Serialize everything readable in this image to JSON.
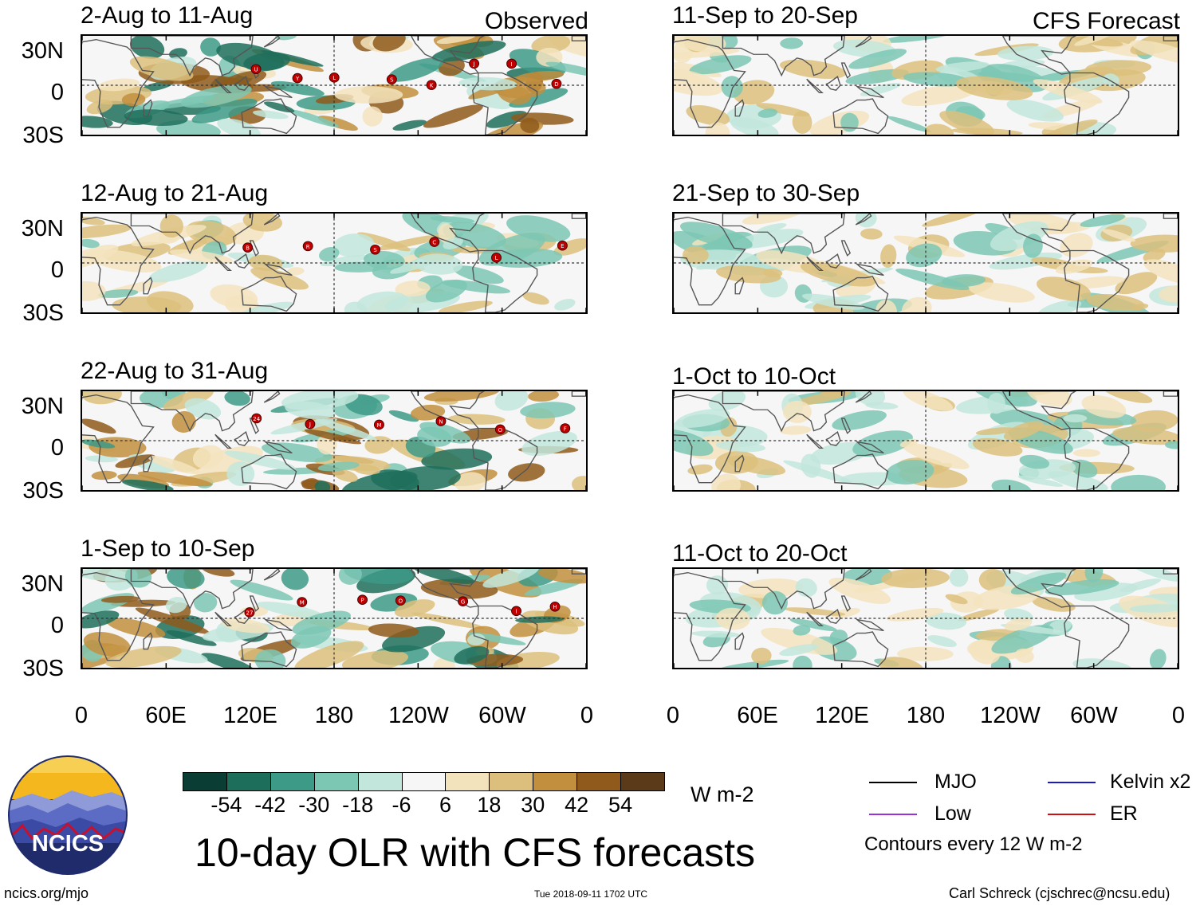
{
  "titles": {
    "left": "Observed",
    "right": "CFS Forecast"
  },
  "panels": {
    "observed": [
      {
        "period": "2-Aug to 11-Aug",
        "storms": [
          "U",
          "Y",
          "L",
          "S",
          "K",
          "J",
          "I",
          "D"
        ]
      },
      {
        "period": "12-Aug to 21-Aug",
        "storms": [
          "B",
          "R",
          "S",
          "C",
          "L",
          "E"
        ]
      },
      {
        "period": "22-Aug to 31-Aug",
        "storms": [
          "24",
          "J",
          "M",
          "N",
          "O",
          "F"
        ]
      },
      {
        "period": "1-Sep to 10-Sep",
        "storms": [
          "27",
          "M",
          "P",
          "O",
          "G",
          "I",
          "H"
        ]
      }
    ],
    "forecast": [
      {
        "period": "11-Sep to 20-Sep"
      },
      {
        "period": "21-Sep to 30-Sep"
      },
      {
        "period": "1-Oct to 10-Oct"
      },
      {
        "period": "11-Oct to 20-Oct"
      }
    ]
  },
  "lat_labels": [
    "30N",
    "0",
    "30S"
  ],
  "lon_labels": [
    "0",
    "60E",
    "120E",
    "180",
    "120W",
    "60W",
    "0"
  ],
  "colorbar": {
    "colors": [
      "#0a3d33",
      "#1e6e5c",
      "#3d9a87",
      "#7cc7b4",
      "#c2e6dc",
      "#f6f6f6",
      "#f3e3bd",
      "#dcbf7c",
      "#c28f3e",
      "#8f5a1b",
      "#5a3a18"
    ],
    "ticks": [
      "-54",
      "-42",
      "-30",
      "-18",
      "-6",
      "6",
      "18",
      "30",
      "42",
      "54"
    ],
    "units": "W m-2"
  },
  "legend": {
    "items": [
      {
        "label": "MJO",
        "color": "#000000"
      },
      {
        "label": "Kelvin x2",
        "color": "#1a1acc"
      },
      {
        "label": "Low",
        "color": "#9b30d9"
      },
      {
        "label": "ER",
        "color": "#d01010"
      }
    ],
    "note": "Contours every 12 W m-2"
  },
  "logo": {
    "text": "NCICS"
  },
  "main_title": "10-day OLR with CFS forecasts",
  "footer": {
    "url": "ncics.org/mjo",
    "timestamp": "Tue 2018-09-11 1702 UTC",
    "credit": "Carl Schreck (cjschrec@ncsu.edu)"
  }
}
